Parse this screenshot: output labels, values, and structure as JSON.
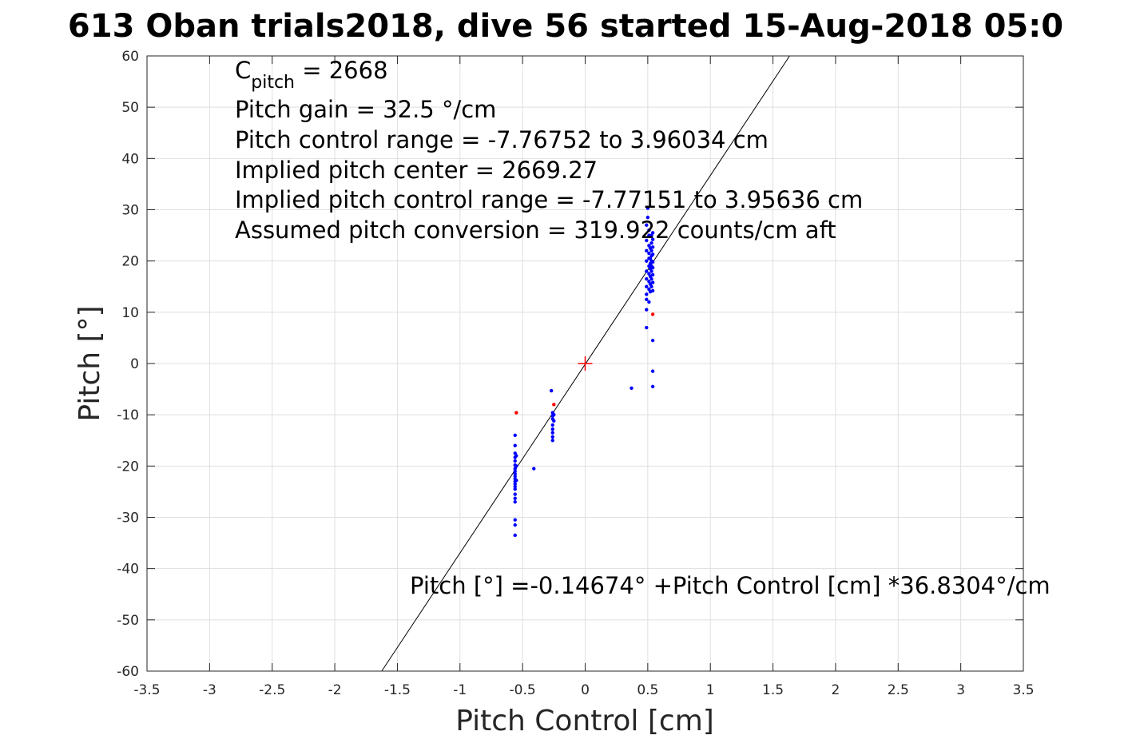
{
  "chart_data": {
    "type": "scatter",
    "title": "613 Oban trials2018, dive 56 started 15-Aug-2018 05:0",
    "xlabel": "Pitch Control [cm]",
    "ylabel": "Pitch [°]",
    "xlim": [
      -3.5,
      3.5
    ],
    "ylim": [
      -60,
      60
    ],
    "xticks": [
      -3.5,
      -3,
      -2.5,
      -2,
      -1.5,
      -1,
      -0.5,
      0,
      0.5,
      1,
      1.5,
      2,
      2.5,
      3,
      3.5
    ],
    "xtick_labels": [
      "-3.5",
      "-3",
      "-2.5",
      "-2",
      "-1.5",
      "-1",
      "-0.5",
      "0",
      "0.5",
      "1",
      "1.5",
      "2",
      "2.5",
      "3",
      "3.5"
    ],
    "yticks": [
      -60,
      -50,
      -40,
      -30,
      -20,
      -10,
      0,
      10,
      20,
      30,
      40,
      50,
      60
    ],
    "ytick_labels": [
      "-60",
      "-50",
      "-40",
      "-30",
      "-20",
      "-10",
      "0",
      "10",
      "20",
      "30",
      "40",
      "50",
      "60"
    ],
    "grid": true,
    "fit_line": {
      "intercept": -0.14674,
      "slope": 36.8304,
      "color": "#000000"
    },
    "center_marker": {
      "x": 0,
      "y": 0,
      "color": "#ff0000"
    },
    "annotations": {
      "c_pitch_main": "C",
      "c_pitch_sub": "pitch",
      "c_pitch_value": " = 2668",
      "line2": "Pitch gain = 32.5 °/cm",
      "line3": "Pitch control range = -7.76752 to 3.96034 cm",
      "line4": "Implied pitch center = 2669.27",
      "line5": "Implied pitch control range = -7.77151 to 3.95636 cm",
      "line6": "Assumed pitch conversion = 319.922 counts/cm aft",
      "fit_equation": "Pitch [°] =-0.14674° +Pitch Control [cm] *36.8304°/cm"
    },
    "series": [
      {
        "color": "#0000ff",
        "points": [
          [
            -0.56,
            -14
          ],
          [
            -0.56,
            -16
          ],
          [
            -0.56,
            -17.5
          ],
          [
            -0.56,
            -18.3
          ],
          [
            -0.56,
            -19
          ],
          [
            -0.56,
            -19.8
          ],
          [
            -0.56,
            -20.5
          ],
          [
            -0.56,
            -21
          ],
          [
            -0.56,
            -21.5
          ],
          [
            -0.56,
            -22
          ],
          [
            -0.56,
            -22.5
          ],
          [
            -0.56,
            -23
          ],
          [
            -0.56,
            -23.5
          ],
          [
            -0.56,
            -24
          ],
          [
            -0.56,
            -24.5
          ],
          [
            -0.56,
            -25.5
          ],
          [
            -0.56,
            -26.3
          ],
          [
            -0.56,
            -27
          ],
          [
            -0.56,
            -30.5
          ],
          [
            -0.56,
            -31.5
          ],
          [
            -0.56,
            -33.5
          ],
          [
            -0.55,
            -18
          ],
          [
            -0.55,
            -20
          ],
          [
            -0.55,
            -22.8
          ],
          [
            -0.41,
            -20.5
          ],
          [
            -0.27,
            -5.3
          ],
          [
            -0.26,
            -9.6
          ],
          [
            -0.26,
            -10.2
          ],
          [
            -0.26,
            -10.8
          ],
          [
            -0.26,
            -12
          ],
          [
            -0.26,
            -12.8
          ],
          [
            -0.26,
            -13.5
          ],
          [
            -0.26,
            -14.3
          ],
          [
            -0.26,
            -15
          ],
          [
            -0.25,
            -10
          ],
          [
            -0.25,
            -11.2
          ],
          [
            0.37,
            -4.8
          ],
          [
            0.49,
            7
          ],
          [
            0.49,
            10.5
          ],
          [
            0.49,
            12.5
          ],
          [
            0.49,
            13.5
          ],
          [
            0.49,
            15
          ],
          [
            0.49,
            16.5
          ],
          [
            0.49,
            18
          ],
          [
            0.49,
            20
          ],
          [
            0.49,
            22
          ],
          [
            0.49,
            24
          ],
          [
            0.49,
            27
          ],
          [
            0.5,
            30.3
          ],
          [
            0.5,
            28.5
          ],
          [
            0.51,
            12
          ],
          [
            0.51,
            14.5
          ],
          [
            0.51,
            16
          ],
          [
            0.51,
            17.5
          ],
          [
            0.51,
            19
          ],
          [
            0.51,
            20.5
          ],
          [
            0.51,
            21.5
          ],
          [
            0.51,
            23
          ],
          [
            0.51,
            25
          ],
          [
            0.51,
            26
          ],
          [
            0.52,
            14
          ],
          [
            0.52,
            15.5
          ],
          [
            0.52,
            17
          ],
          [
            0.52,
            18.5
          ],
          [
            0.52,
            19.5
          ],
          [
            0.52,
            20.5
          ],
          [
            0.52,
            22.5
          ],
          [
            0.53,
            15
          ],
          [
            0.53,
            16.5
          ],
          [
            0.53,
            18
          ],
          [
            0.53,
            19
          ],
          [
            0.53,
            20
          ],
          [
            0.53,
            21
          ],
          [
            0.53,
            22
          ],
          [
            0.53,
            23.5
          ],
          [
            0.53,
            25
          ],
          [
            0.54,
            14.2
          ],
          [
            0.54,
            15.8
          ],
          [
            0.54,
            17.3
          ],
          [
            0.54,
            18.7
          ],
          [
            0.54,
            19.8
          ],
          [
            0.54,
            21.3
          ],
          [
            0.54,
            22.7
          ],
          [
            0.54,
            24.2
          ],
          [
            0.54,
            25.5
          ],
          [
            0.54,
            4.5
          ],
          [
            0.54,
            -1.5
          ],
          [
            0.54,
            -4.5
          ]
        ]
      },
      {
        "color": "#ff0000",
        "points": [
          [
            -0.55,
            -9.6
          ],
          [
            -0.25,
            -8
          ],
          [
            0.54,
            9.6
          ]
        ]
      }
    ]
  }
}
